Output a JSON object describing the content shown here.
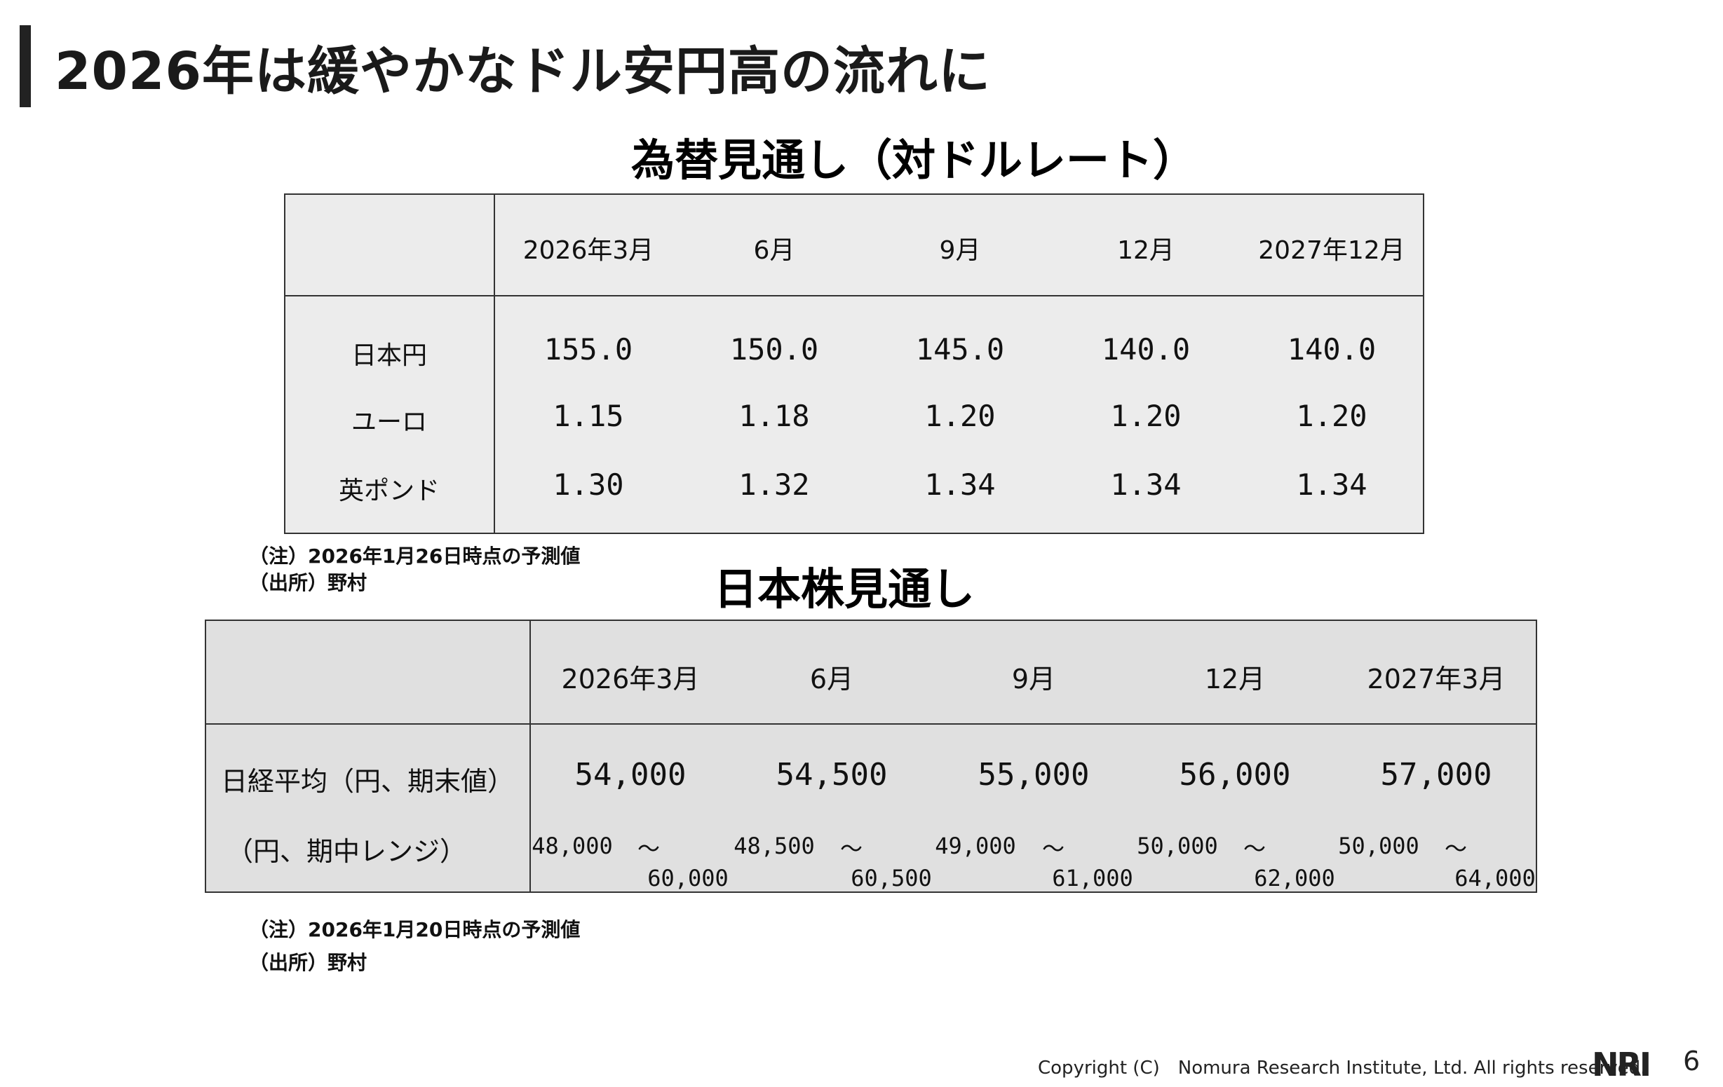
{
  "page_title": "2026年は緩やかなドル安円高の流れに",
  "fx": {
    "title": "為替見通し（対ドルレート）",
    "headers": [
      "2026年3月",
      "6月",
      "9月",
      "12月",
      "2027年12月"
    ],
    "rows": [
      {
        "label": "日本円",
        "values": [
          "155.0",
          "150.0",
          "145.0",
          "140.0",
          "140.0"
        ]
      },
      {
        "label": "ユーロ",
        "values": [
          "1.15",
          "1.18",
          "1.20",
          "1.20",
          "1.20"
        ]
      },
      {
        "label": "英ポンド",
        "values": [
          "1.30",
          "1.32",
          "1.34",
          "1.34",
          "1.34"
        ]
      }
    ],
    "note": "（注）2026年1月26日時点の予測値",
    "source": "（出所）野村"
  },
  "stock": {
    "title": "日本株見通し",
    "headers": [
      "2026年3月",
      "6月",
      "9月",
      "12月",
      "2027年3月"
    ],
    "avg_label": "日経平均（円、期末値）",
    "avg_values": [
      "54,000",
      "54,500",
      "55,000",
      "56,000",
      "57,000"
    ],
    "range_label": "（円、期中レンジ）",
    "ranges": [
      {
        "low": "48,000",
        "tilde": "～",
        "high": "60,000"
      },
      {
        "low": "48,500",
        "tilde": "～",
        "high": "60,500"
      },
      {
        "low": "49,000",
        "tilde": "～",
        "high": "61,000"
      },
      {
        "low": "50,000",
        "tilde": "～",
        "high": "62,000"
      },
      {
        "low": "50,000",
        "tilde": "～",
        "high": "64,000"
      }
    ],
    "note": "（注）2026年1月20日時点の予測値",
    "source": "（出所）野村"
  },
  "footer": {
    "copyright": "Copyright (C)　Nomura Research Institute, Ltd. All rights reserved.",
    "logo": "NRI",
    "page_number": "6"
  }
}
